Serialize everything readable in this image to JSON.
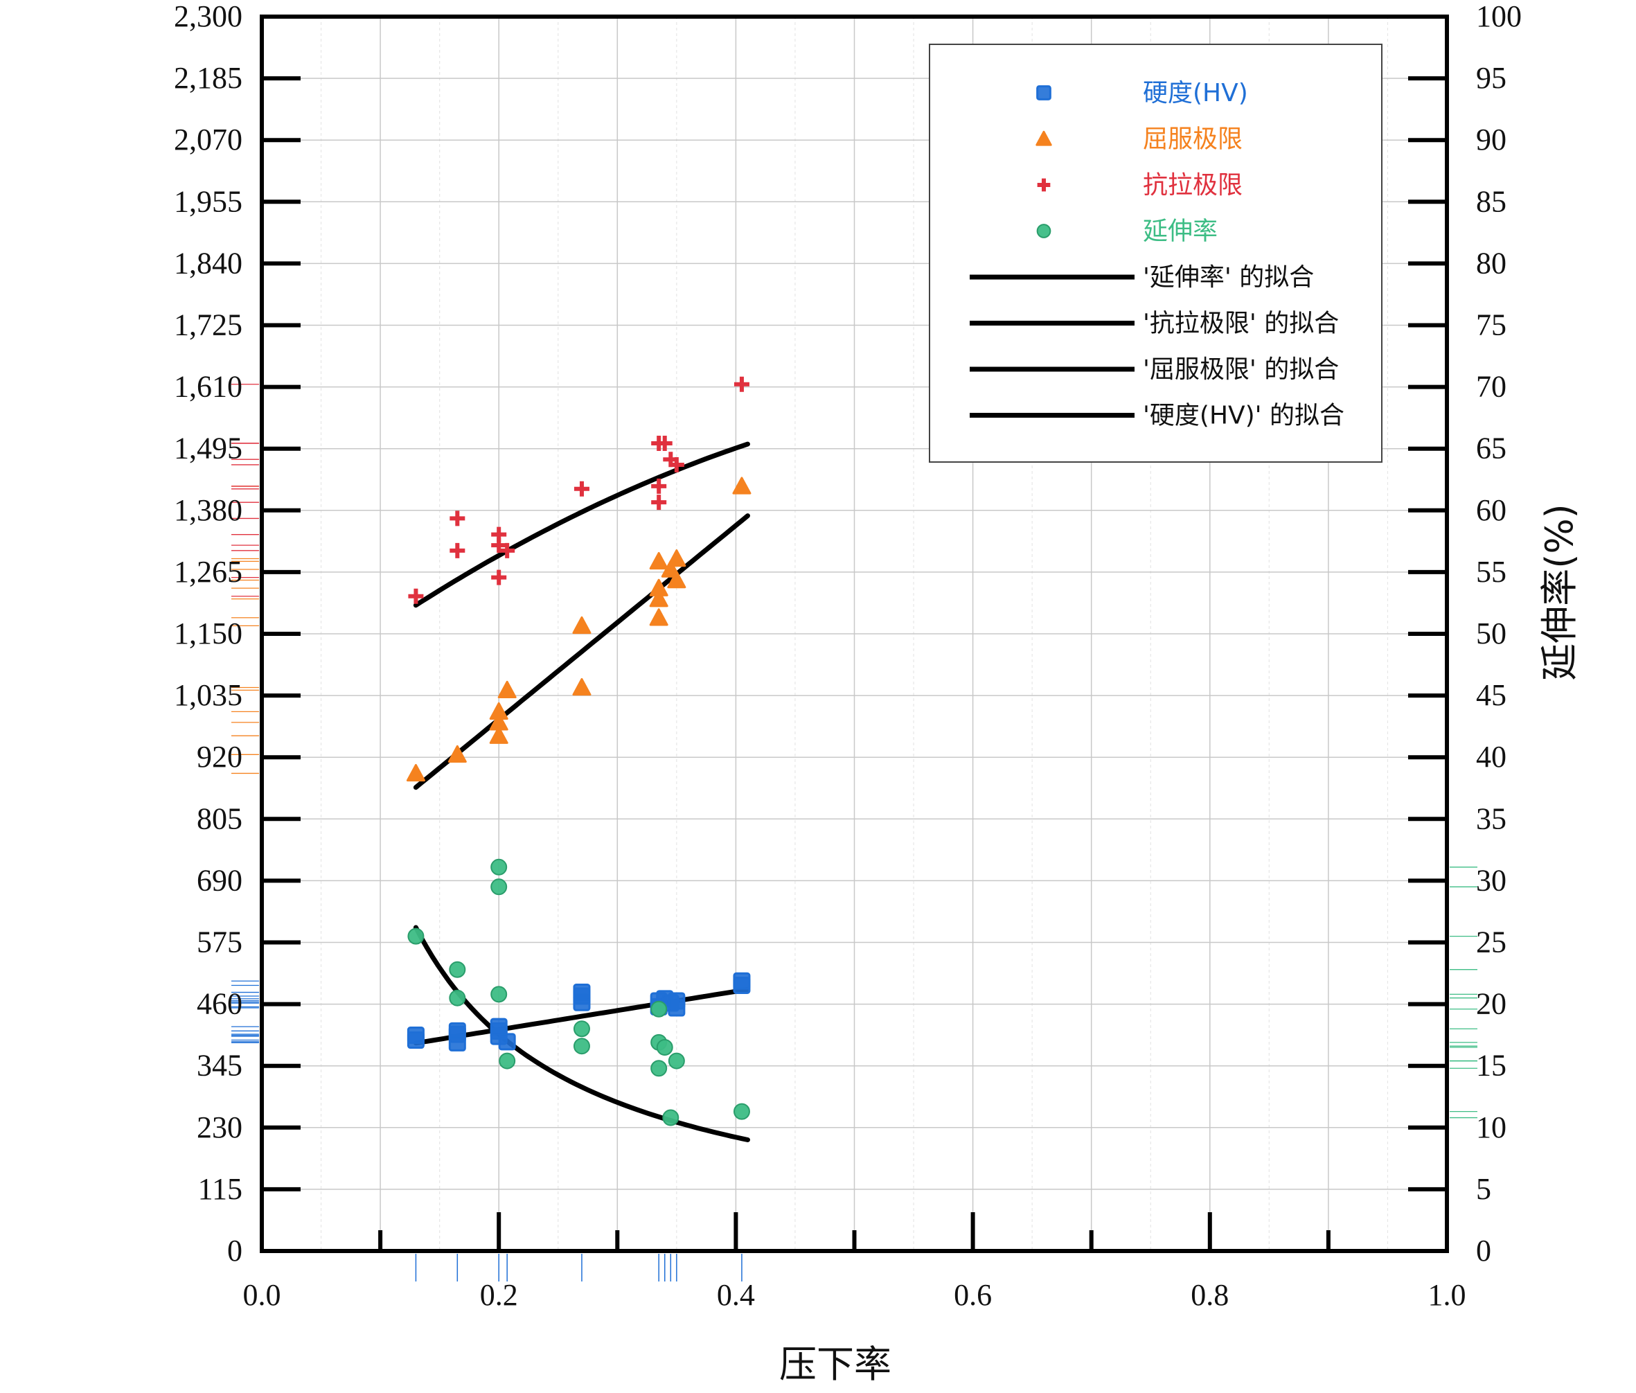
{
  "chart_data": {
    "type": "scatter",
    "xlabel": "压下率",
    "ylabel_right": "延伸率(%)",
    "xlim": [
      0,
      1
    ],
    "ylim_left": [
      0,
      2300
    ],
    "ylim_right": [
      0,
      100
    ],
    "grid": true,
    "legend_position": "top-right",
    "x_ticks": [
      "0.0",
      "0.2",
      "0.4",
      "0.6",
      "0.8",
      "1.0"
    ],
    "y_left_ticks": [
      "0",
      "115",
      "230",
      "345",
      "460",
      "575",
      "690",
      "805",
      "920",
      "1,035",
      "1,150",
      "1,265",
      "1,380",
      "1,495",
      "1,610",
      "1,725",
      "1,840",
      "1,955",
      "2,070",
      "2,185",
      "2,300"
    ],
    "y_right_ticks": [
      "0",
      "5",
      "10",
      "15",
      "20",
      "25",
      "30",
      "35",
      "40",
      "45",
      "50",
      "55",
      "60",
      "65",
      "70",
      "75",
      "80",
      "85",
      "90",
      "95",
      "100"
    ],
    "series": [
      {
        "name": "硬度(HV)",
        "axis": "left",
        "marker": "square",
        "color": "#1f6fd6",
        "points": [
          [
            0.13,
            393
          ],
          [
            0.13,
            402
          ],
          [
            0.165,
            388
          ],
          [
            0.165,
            404
          ],
          [
            0.165,
            410
          ],
          [
            0.2,
            400
          ],
          [
            0.2,
            410
          ],
          [
            0.2,
            418
          ],
          [
            0.207,
            390
          ],
          [
            0.27,
            463
          ],
          [
            0.27,
            475
          ],
          [
            0.27,
            482
          ],
          [
            0.335,
            455
          ],
          [
            0.335,
            466
          ],
          [
            0.34,
            470
          ],
          [
            0.345,
            462
          ],
          [
            0.35,
            453
          ],
          [
            0.35,
            466
          ],
          [
            0.405,
            495
          ],
          [
            0.405,
            503
          ]
        ]
      },
      {
        "name": "屈服极限",
        "axis": "left",
        "marker": "triangle",
        "color": "#f5821f",
        "points": [
          [
            0.13,
            890
          ],
          [
            0.165,
            925
          ],
          [
            0.2,
            960
          ],
          [
            0.2,
            985
          ],
          [
            0.2,
            1005
          ],
          [
            0.207,
            1045
          ],
          [
            0.27,
            1050
          ],
          [
            0.27,
            1165
          ],
          [
            0.335,
            1180
          ],
          [
            0.335,
            1215
          ],
          [
            0.335,
            1235
          ],
          [
            0.335,
            1285
          ],
          [
            0.345,
            1270
          ],
          [
            0.35,
            1250
          ],
          [
            0.35,
            1290
          ],
          [
            0.405,
            1425
          ]
        ]
      },
      {
        "name": "抗拉极限",
        "axis": "left",
        "marker": "plus",
        "color": "#e0313e",
        "points": [
          [
            0.13,
            1220
          ],
          [
            0.165,
            1305
          ],
          [
            0.165,
            1365
          ],
          [
            0.2,
            1255
          ],
          [
            0.2,
            1315
          ],
          [
            0.2,
            1335
          ],
          [
            0.207,
            1305
          ],
          [
            0.27,
            1420
          ],
          [
            0.335,
            1395
          ],
          [
            0.335,
            1425
          ],
          [
            0.335,
            1505
          ],
          [
            0.34,
            1505
          ],
          [
            0.345,
            1475
          ],
          [
            0.35,
            1465
          ],
          [
            0.405,
            1615
          ]
        ]
      },
      {
        "name": "延伸率",
        "axis": "right",
        "marker": "circle",
        "color": "#3dbd85",
        "points": [
          [
            0.13,
            25.5
          ],
          [
            0.165,
            20.5
          ],
          [
            0.165,
            22.8
          ],
          [
            0.2,
            20.8
          ],
          [
            0.2,
            29.5
          ],
          [
            0.2,
            31.1
          ],
          [
            0.207,
            15.4
          ],
          [
            0.27,
            16.6
          ],
          [
            0.27,
            18.0
          ],
          [
            0.335,
            14.8
          ],
          [
            0.335,
            16.9
          ],
          [
            0.335,
            19.6
          ],
          [
            0.34,
            16.5
          ],
          [
            0.345,
            10.8
          ],
          [
            0.35,
            15.4
          ],
          [
            0.405,
            11.3
          ]
        ]
      }
    ],
    "fits": [
      {
        "name": "'延伸率' 的拟合",
        "axis": "right",
        "color": "#000000",
        "x_range": [
          0.13,
          0.41
        ],
        "model": "power",
        "a": 3.93,
        "b": -0.93
      },
      {
        "name": "'抗拉极限' 的拟合",
        "axis": "left",
        "color": "#000000",
        "x_range": [
          0.13,
          0.41
        ],
        "model": "quadratic",
        "c0": 1000,
        "c1": 1720,
        "c2": -1200
      },
      {
        "name": "'屈服极限' 的拟合",
        "axis": "left",
        "color": "#000000",
        "x_range": [
          0.13,
          0.41
        ],
        "model": "linear",
        "c0": 629,
        "c1": 1807
      },
      {
        "name": "'硬度(HV)' 的拟合",
        "axis": "left",
        "color": "#000000",
        "x_range": [
          0.13,
          0.41
        ],
        "model": "linear",
        "c0": 341,
        "c1": 357
      }
    ]
  }
}
